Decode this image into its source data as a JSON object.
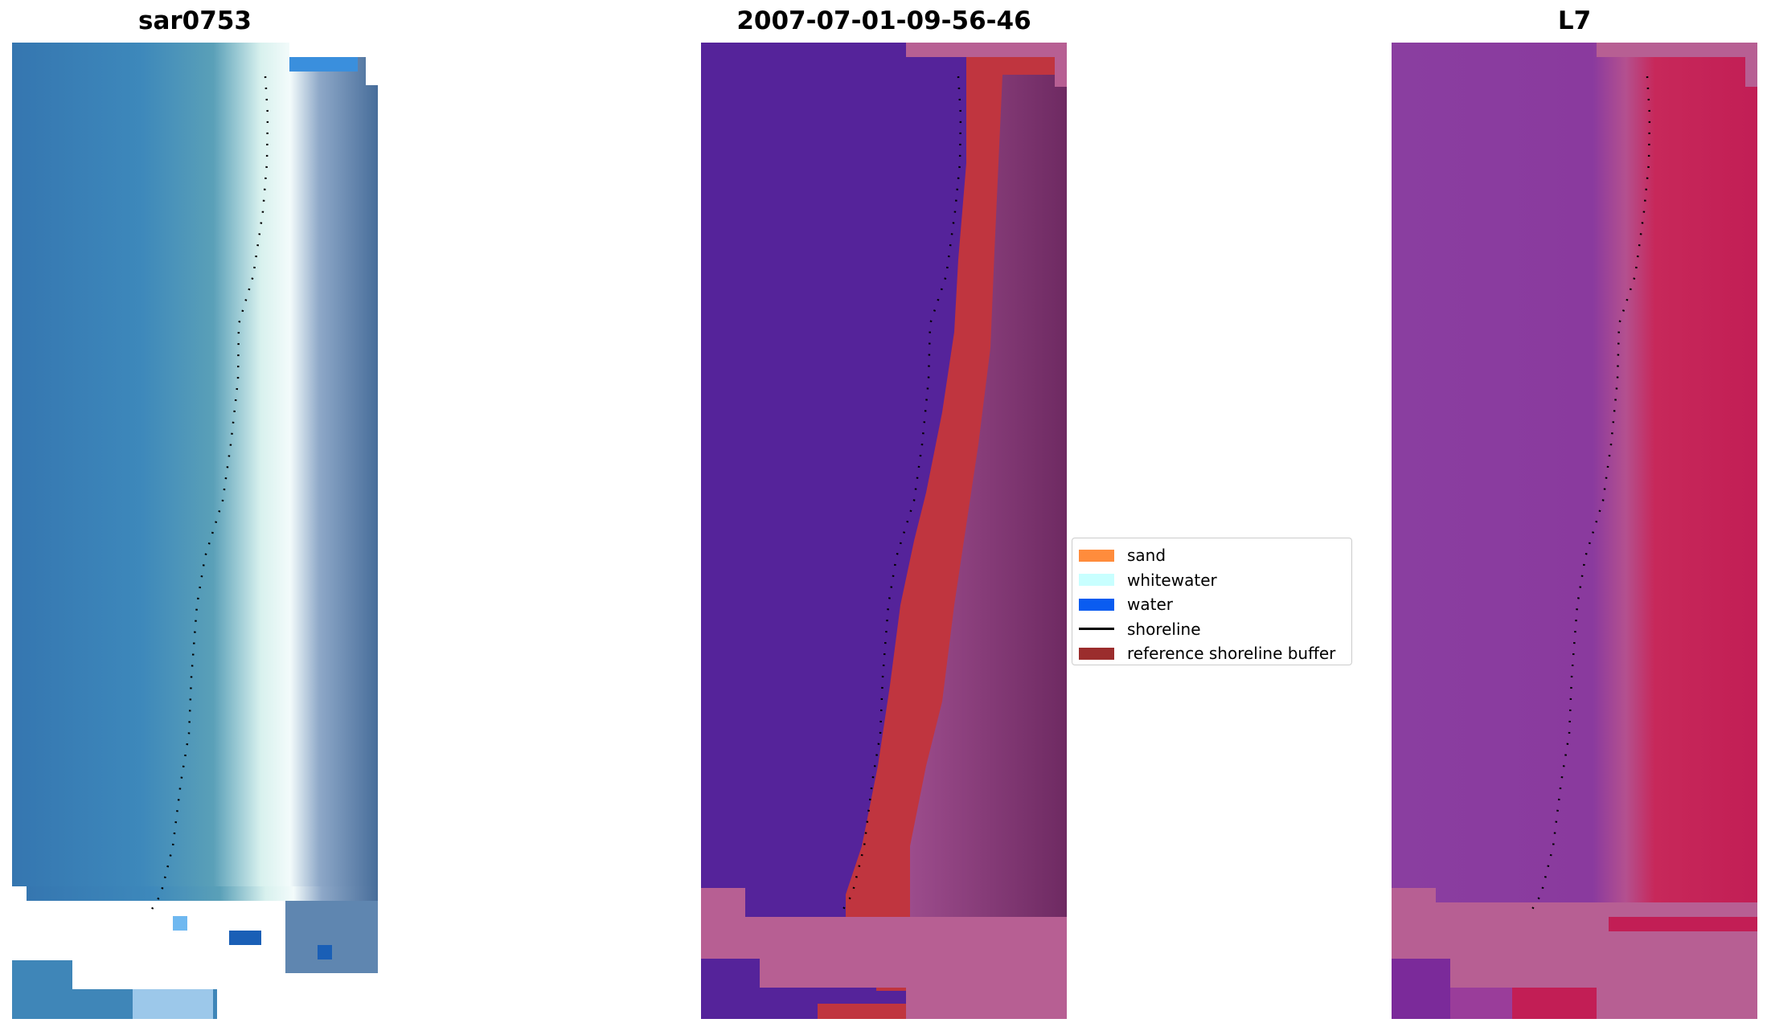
{
  "panels": [
    {
      "title": "sar0753",
      "image_kind": "rgb-satellite-image"
    },
    {
      "title": "2007-07-01-09-56-46",
      "image_kind": "classified-image"
    },
    {
      "title": "L7",
      "image_kind": "false-color-image"
    }
  ],
  "legend": {
    "items": [
      {
        "label": "sand",
        "color": "#ff8c3c",
        "kind": "patch"
      },
      {
        "label": "whitewater",
        "color": "#c8ffff",
        "kind": "patch"
      },
      {
        "label": "water",
        "color": "#0a5cf0",
        "kind": "patch"
      },
      {
        "label": "shoreline",
        "color": "#000000",
        "kind": "line"
      },
      {
        "label": "reference shoreline buffer",
        "color": "#9b2d2d",
        "kind": "patch"
      }
    ]
  },
  "colors": {
    "sea_blue": "#3f86b8",
    "whitewater": "#e8fbf7",
    "class_water": "#55239a",
    "class_buffer": "#c0353f",
    "class_nodata": "#b75f93",
    "fc_water": "#8a3ea0",
    "fc_land": "#c7285a"
  }
}
